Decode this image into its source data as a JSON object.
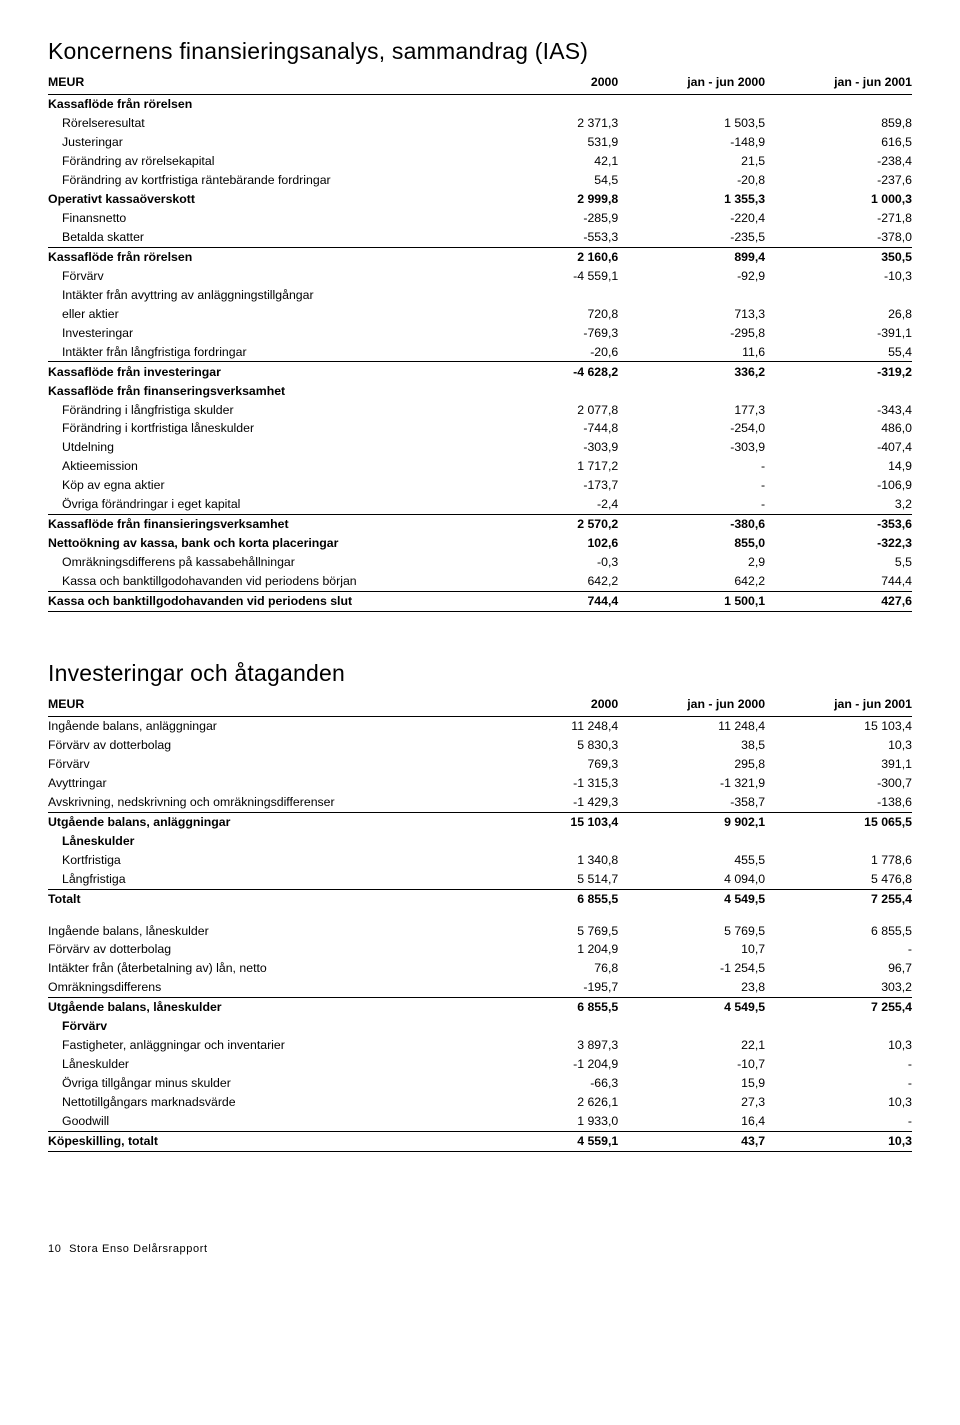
{
  "section1": {
    "title": "Koncernens finansieringsanalys, sammandrag (IAS)",
    "columns": [
      "MEUR",
      "2000",
      "jan - jun 2000",
      "jan - jun 2001"
    ],
    "rows": [
      {
        "label": "Kassaflöde från rörelsen",
        "v": [
          "",
          "",
          ""
        ],
        "bold": true
      },
      {
        "label": "Rörelseresultat",
        "v": [
          "2 371,3",
          "1 503,5",
          "859,8"
        ],
        "indent": 1
      },
      {
        "label": "Justeringar",
        "v": [
          "531,9",
          "-148,9",
          "616,5"
        ],
        "indent": 1
      },
      {
        "label": "Förändring av rörelsekapital",
        "v": [
          "42,1",
          "21,5",
          "-238,4"
        ],
        "indent": 1
      },
      {
        "label": "Förändring av kortfristiga räntebärande fordringar",
        "v": [
          "54,5",
          "-20,8",
          "-237,6"
        ],
        "indent": 1
      },
      {
        "label": "Operativt kassaöverskott",
        "v": [
          "2 999,8",
          "1 355,3",
          "1 000,3"
        ],
        "bold": true
      },
      {
        "label": "Finansnetto",
        "v": [
          "-285,9",
          "-220,4",
          "-271,8"
        ],
        "indent": 1
      },
      {
        "label": "Betalda skatter",
        "v": [
          "-553,3",
          "-235,5",
          "-378,0"
        ],
        "indent": 1,
        "underline": true
      },
      {
        "label": "Kassaflöde från rörelsen",
        "v": [
          "2 160,6",
          "899,4",
          "350,5"
        ],
        "bold": true
      },
      {
        "label": "Förvärv",
        "v": [
          "-4 559,1",
          "-92,9",
          "-10,3"
        ],
        "indent": 1
      },
      {
        "label": "Intäkter från avyttring av anläggningstillgångar",
        "v": [
          "",
          "",
          ""
        ],
        "indent": 1
      },
      {
        "label": "eller aktier",
        "v": [
          "720,8",
          "713,3",
          "26,8"
        ],
        "indent": 1
      },
      {
        "label": "Investeringar",
        "v": [
          "-769,3",
          "-295,8",
          "-391,1"
        ],
        "indent": 1
      },
      {
        "label": "Intäkter från långfristiga fordringar",
        "v": [
          "-20,6",
          "11,6",
          "55,4"
        ],
        "indent": 1,
        "underline": true
      },
      {
        "label": "Kassaflöde från investeringar",
        "v": [
          "-4 628,2",
          "336,2",
          "-319,2"
        ],
        "bold": true
      },
      {
        "label": "Kassaflöde från finanseringsverksamhet",
        "v": [
          "",
          "",
          ""
        ],
        "bold": true
      },
      {
        "label": "Förändring i långfristiga skulder",
        "v": [
          "2 077,8",
          "177,3",
          "-343,4"
        ],
        "indent": 1
      },
      {
        "label": "Förändring i kortfristiga låneskulder",
        "v": [
          "-744,8",
          "-254,0",
          "486,0"
        ],
        "indent": 1
      },
      {
        "label": "Utdelning",
        "v": [
          "-303,9",
          "-303,9",
          "-407,4"
        ],
        "indent": 1
      },
      {
        "label": "Aktieemission",
        "v": [
          "1 717,2",
          "-",
          "14,9"
        ],
        "indent": 1
      },
      {
        "label": "Köp av egna aktier",
        "v": [
          "-173,7",
          "-",
          "-106,9"
        ],
        "indent": 1
      },
      {
        "label": "Övriga förändringar i eget kapital",
        "v": [
          "-2,4",
          "-",
          "3,2"
        ],
        "indent": 1,
        "underline": true
      },
      {
        "label": "Kassaflöde från finansieringsverksamhet",
        "v": [
          "2 570,2",
          "-380,6",
          "-353,6"
        ],
        "bold": true
      },
      {
        "label": "Nettoökning av kassa, bank och korta placeringar",
        "v": [
          "102,6",
          "855,0",
          "-322,3"
        ],
        "bold": true
      },
      {
        "label": "Omräkningsdifferens på kassabehållningar",
        "v": [
          "-0,3",
          "2,9",
          "5,5"
        ],
        "indent": 1
      },
      {
        "label": "Kassa och banktillgodohavanden vid periodens början",
        "v": [
          "642,2",
          "642,2",
          "744,4"
        ],
        "indent": 1,
        "underline": true
      },
      {
        "label": "Kassa och banktillgodohavanden vid periodens slut",
        "v": [
          "744,4",
          "1 500,1",
          "427,6"
        ],
        "bold": true,
        "underline": true
      }
    ]
  },
  "section2": {
    "title": "Investeringar och åtaganden",
    "columns": [
      "MEUR",
      "2000",
      "jan - jun 2000",
      "jan - jun 2001"
    ],
    "rows": [
      {
        "label": "Ingående balans, anläggningar",
        "v": [
          "11 248,4",
          "11 248,4",
          "15 103,4"
        ]
      },
      {
        "label": "Förvärv av dotterbolag",
        "v": [
          "5 830,3",
          "38,5",
          "10,3"
        ]
      },
      {
        "label": "Förvärv",
        "v": [
          "769,3",
          "295,8",
          "391,1"
        ]
      },
      {
        "label": "Avyttringar",
        "v": [
          "-1 315,3",
          "-1 321,9",
          "-300,7"
        ]
      },
      {
        "label": "Avskrivning, nedskrivning och omräkningsdifferenser",
        "v": [
          "-1 429,3",
          "-358,7",
          "-138,6"
        ],
        "underline": true
      },
      {
        "label": "Utgående balans, anläggningar",
        "v": [
          "15 103,4",
          "9 902,1",
          "15 065,5"
        ],
        "bold": true
      },
      {
        "label": "Låneskulder",
        "v": [
          "",
          "",
          ""
        ],
        "bold": true,
        "indent": 1
      },
      {
        "label": "Kortfristiga",
        "v": [
          "1 340,8",
          "455,5",
          "1 778,6"
        ],
        "indent": 1
      },
      {
        "label": "Långfristiga",
        "v": [
          "5 514,7",
          "4 094,0",
          "5 476,8"
        ],
        "indent": 1,
        "underline": true
      },
      {
        "label": "Totalt",
        "v": [
          "6 855,5",
          "4 549,5",
          "7 255,4"
        ],
        "bold": true
      },
      {
        "label": "Ingående balans, låneskulder",
        "v": [
          "5 769,5",
          "5 769,5",
          "6 855,5"
        ],
        "gap": true
      },
      {
        "label": "Förvärv av dotterbolag",
        "v": [
          "1 204,9",
          "10,7",
          "-"
        ]
      },
      {
        "label": "Intäkter från (återbetalning av) lån, netto",
        "v": [
          "76,8",
          "-1 254,5",
          "96,7"
        ]
      },
      {
        "label": "Omräkningsdifferens",
        "v": [
          "-195,7",
          "23,8",
          "303,2"
        ],
        "underline": true
      },
      {
        "label": "Utgående balans, låneskulder",
        "v": [
          "6 855,5",
          "4 549,5",
          "7 255,4"
        ],
        "bold": true
      },
      {
        "label": "Förvärv",
        "v": [
          "",
          "",
          ""
        ],
        "bold": true,
        "indent": 1
      },
      {
        "label": "Fastigheter, anläggningar och inventarier",
        "v": [
          "3 897,3",
          "22,1",
          "10,3"
        ],
        "indent": 1
      },
      {
        "label": "Låneskulder",
        "v": [
          "-1 204,9",
          "-10,7",
          "-"
        ],
        "indent": 1
      },
      {
        "label": "Övriga tillgångar minus skulder",
        "v": [
          "-66,3",
          "15,9",
          "-"
        ],
        "indent": 1
      },
      {
        "label": "Nettotillgångars marknadsvärde",
        "v": [
          "2 626,1",
          "27,3",
          "10,3"
        ],
        "indent": 1
      },
      {
        "label": "Goodwill",
        "v": [
          "1 933,0",
          "16,4",
          "-"
        ],
        "indent": 1,
        "underline": true
      },
      {
        "label": "Köpeskilling, totalt",
        "v": [
          "4 559,1",
          "43,7",
          "10,3"
        ],
        "bold": true,
        "underline": true
      }
    ]
  },
  "footer": {
    "page": "10",
    "text": "Stora Enso Delårsrapport"
  }
}
